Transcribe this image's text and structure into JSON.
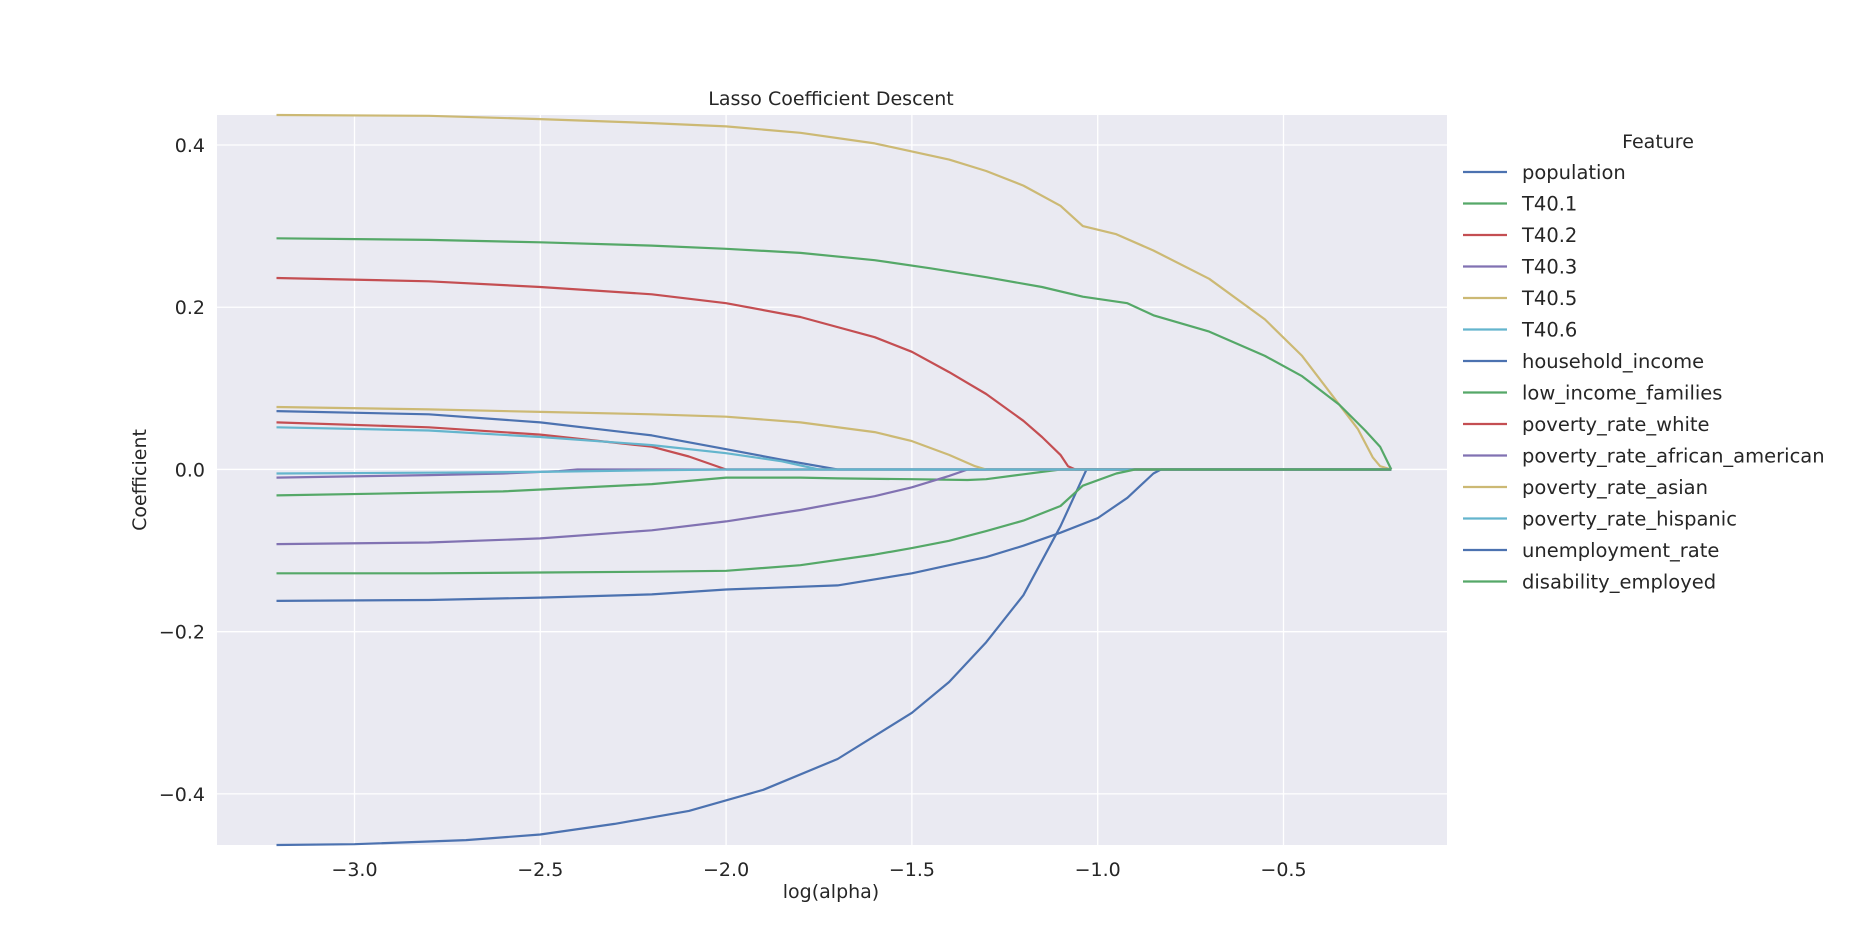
{
  "chart_data": {
    "type": "line",
    "title": "Lasso  Coefficient Descent",
    "xlabel": "log(alpha)",
    "ylabel": "Coefficient",
    "xlim": [
      -3.37,
      -0.06
    ],
    "ylim": [
      -0.463,
      0.437
    ],
    "xticks": [
      -3.0,
      -2.5,
      -2.0,
      -1.5,
      -1.0,
      -0.5
    ],
    "xtick_labels": [
      "−3.0",
      "−2.5",
      "−2.0",
      "−1.5",
      "−1.0",
      "−0.5"
    ],
    "yticks": [
      -0.4,
      -0.2,
      0.0,
      0.2,
      0.4
    ],
    "ytick_labels": [
      "−0.4",
      "−0.2",
      "0.0",
      "0.2",
      "0.4"
    ],
    "grid": true,
    "background": "#eaeaf2",
    "grid_color": "#ffffff",
    "legend": {
      "title": "Feature",
      "placement": "outside-right"
    },
    "series": [
      {
        "name": "population",
        "color": "#4c72b0",
        "points": [
          [
            -3.21,
            0.072
          ],
          [
            -2.8,
            0.068
          ],
          [
            -2.5,
            0.058
          ],
          [
            -2.2,
            0.042
          ],
          [
            -2.0,
            0.025
          ],
          [
            -1.85,
            0.012
          ],
          [
            -1.7,
            0.0
          ],
          [
            -0.21,
            0.0
          ]
        ]
      },
      {
        "name": "T40.1",
        "color": "#55a868",
        "points": [
          [
            -3.21,
            -0.032
          ],
          [
            -2.6,
            -0.027
          ],
          [
            -2.2,
            -0.018
          ],
          [
            -2.0,
            -0.01
          ],
          [
            -1.8,
            -0.01
          ],
          [
            -1.7,
            -0.011
          ],
          [
            -1.5,
            -0.012
          ],
          [
            -1.35,
            -0.013
          ],
          [
            -1.3,
            -0.012
          ],
          [
            -1.2,
            -0.006
          ],
          [
            -1.1,
            0.0
          ],
          [
            -0.21,
            0.0
          ]
        ]
      },
      {
        "name": "T40.2",
        "color": "#c44e52",
        "points": [
          [
            -3.21,
            0.058
          ],
          [
            -2.8,
            0.052
          ],
          [
            -2.5,
            0.043
          ],
          [
            -2.2,
            0.028
          ],
          [
            -2.1,
            0.016
          ],
          [
            -2.0,
            0.0
          ],
          [
            -0.21,
            0.0
          ]
        ]
      },
      {
        "name": "T40.3",
        "color": "#8172b2",
        "points": [
          [
            -3.21,
            -0.01
          ],
          [
            -2.8,
            -0.007
          ],
          [
            -2.6,
            -0.005
          ],
          [
            -2.45,
            -0.002
          ],
          [
            -2.4,
            0.0
          ],
          [
            -0.21,
            0.0
          ]
        ]
      },
      {
        "name": "T40.5",
        "color": "#ccb974",
        "points": [
          [
            -3.21,
            0.437
          ],
          [
            -2.8,
            0.436
          ],
          [
            -2.5,
            0.432
          ],
          [
            -2.2,
            0.427
          ],
          [
            -2.0,
            0.423
          ],
          [
            -1.8,
            0.415
          ],
          [
            -1.6,
            0.402
          ],
          [
            -1.4,
            0.382
          ],
          [
            -1.3,
            0.368
          ],
          [
            -1.2,
            0.35
          ],
          [
            -1.1,
            0.325
          ],
          [
            -1.04,
            0.3
          ],
          [
            -0.95,
            0.29
          ],
          [
            -0.85,
            0.27
          ],
          [
            -0.7,
            0.235
          ],
          [
            -0.55,
            0.185
          ],
          [
            -0.45,
            0.14
          ],
          [
            -0.35,
            0.08
          ],
          [
            -0.3,
            0.05
          ],
          [
            -0.26,
            0.015
          ],
          [
            -0.24,
            0.004
          ],
          [
            -0.21,
            0.0
          ]
        ]
      },
      {
        "name": "T40.6",
        "color": "#64b5cd",
        "points": [
          [
            -3.21,
            -0.005
          ],
          [
            -2.8,
            -0.004
          ],
          [
            -2.5,
            -0.003
          ],
          [
            -2.2,
            -0.001
          ],
          [
            -2.0,
            0.0
          ],
          [
            -0.21,
            0.0
          ]
        ]
      },
      {
        "name": "household_income",
        "color": "#4c72b0",
        "points": [
          [
            -3.21,
            -0.463
          ],
          [
            -3.0,
            -0.462
          ],
          [
            -2.7,
            -0.457
          ],
          [
            -2.5,
            -0.45
          ],
          [
            -2.3,
            -0.437
          ],
          [
            -2.1,
            -0.421
          ],
          [
            -1.9,
            -0.395
          ],
          [
            -1.7,
            -0.357
          ],
          [
            -1.5,
            -0.3
          ],
          [
            -1.4,
            -0.262
          ],
          [
            -1.3,
            -0.213
          ],
          [
            -1.2,
            -0.155
          ],
          [
            -1.1,
            -0.07
          ],
          [
            -1.05,
            -0.02
          ],
          [
            -1.03,
            0.0
          ],
          [
            -0.21,
            0.0
          ]
        ]
      },
      {
        "name": "low_income_families",
        "color": "#55a868",
        "points": [
          [
            -3.21,
            0.285
          ],
          [
            -2.8,
            0.283
          ],
          [
            -2.5,
            0.28
          ],
          [
            -2.2,
            0.276
          ],
          [
            -2.0,
            0.272
          ],
          [
            -1.8,
            0.267
          ],
          [
            -1.6,
            0.258
          ],
          [
            -1.45,
            0.248
          ],
          [
            -1.3,
            0.237
          ],
          [
            -1.15,
            0.225
          ],
          [
            -1.04,
            0.213
          ],
          [
            -0.92,
            0.205
          ],
          [
            -0.85,
            0.19
          ],
          [
            -0.7,
            0.17
          ],
          [
            -0.55,
            0.14
          ],
          [
            -0.45,
            0.115
          ],
          [
            -0.35,
            0.08
          ],
          [
            -0.28,
            0.048
          ],
          [
            -0.24,
            0.028
          ],
          [
            -0.21,
            0.0
          ]
        ]
      },
      {
        "name": "poverty_rate_white",
        "color": "#c44e52",
        "points": [
          [
            -3.21,
            0.236
          ],
          [
            -2.8,
            0.232
          ],
          [
            -2.5,
            0.225
          ],
          [
            -2.2,
            0.216
          ],
          [
            -2.0,
            0.205
          ],
          [
            -1.8,
            0.188
          ],
          [
            -1.6,
            0.163
          ],
          [
            -1.5,
            0.145
          ],
          [
            -1.4,
            0.12
          ],
          [
            -1.3,
            0.093
          ],
          [
            -1.2,
            0.06
          ],
          [
            -1.15,
            0.04
          ],
          [
            -1.1,
            0.018
          ],
          [
            -1.08,
            0.004
          ],
          [
            -1.06,
            0.0
          ],
          [
            -0.21,
            0.0
          ]
        ]
      },
      {
        "name": "poverty_rate_african_american",
        "color": "#8172b2",
        "points": [
          [
            -3.21,
            -0.092
          ],
          [
            -2.8,
            -0.09
          ],
          [
            -2.5,
            -0.085
          ],
          [
            -2.2,
            -0.075
          ],
          [
            -2.0,
            -0.064
          ],
          [
            -1.8,
            -0.05
          ],
          [
            -1.6,
            -0.033
          ],
          [
            -1.5,
            -0.022
          ],
          [
            -1.4,
            -0.008
          ],
          [
            -1.35,
            0.0
          ],
          [
            -0.21,
            0.0
          ]
        ]
      },
      {
        "name": "poverty_rate_asian",
        "color": "#ccb974",
        "points": [
          [
            -3.21,
            0.077
          ],
          [
            -2.8,
            0.074
          ],
          [
            -2.5,
            0.071
          ],
          [
            -2.2,
            0.068
          ],
          [
            -2.0,
            0.065
          ],
          [
            -1.8,
            0.058
          ],
          [
            -1.6,
            0.046
          ],
          [
            -1.5,
            0.035
          ],
          [
            -1.4,
            0.018
          ],
          [
            -1.33,
            0.004
          ],
          [
            -1.3,
            0.0
          ],
          [
            -0.21,
            0.0
          ]
        ]
      },
      {
        "name": "poverty_rate_hispanic",
        "color": "#64b5cd",
        "points": [
          [
            -3.21,
            0.052
          ],
          [
            -2.8,
            0.048
          ],
          [
            -2.5,
            0.04
          ],
          [
            -2.2,
            0.03
          ],
          [
            -2.0,
            0.02
          ],
          [
            -1.85,
            0.01
          ],
          [
            -1.75,
            0.0
          ],
          [
            -0.21,
            0.0
          ]
        ]
      },
      {
        "name": "unemployment_rate",
        "color": "#4c72b0",
        "points": [
          [
            -3.21,
            -0.162
          ],
          [
            -2.8,
            -0.161
          ],
          [
            -2.5,
            -0.158
          ],
          [
            -2.2,
            -0.154
          ],
          [
            -2.0,
            -0.148
          ],
          [
            -1.7,
            -0.143
          ],
          [
            -1.5,
            -0.128
          ],
          [
            -1.3,
            -0.108
          ],
          [
            -1.2,
            -0.094
          ],
          [
            -1.1,
            -0.078
          ],
          [
            -1.0,
            -0.06
          ],
          [
            -0.92,
            -0.035
          ],
          [
            -0.85,
            -0.005
          ],
          [
            -0.83,
            0.0
          ],
          [
            -0.21,
            0.0
          ]
        ]
      },
      {
        "name": "disability_employed",
        "color": "#55a868",
        "points": [
          [
            -3.21,
            -0.128
          ],
          [
            -2.8,
            -0.128
          ],
          [
            -2.5,
            -0.127
          ],
          [
            -2.2,
            -0.126
          ],
          [
            -2.0,
            -0.125
          ],
          [
            -1.8,
            -0.118
          ],
          [
            -1.6,
            -0.105
          ],
          [
            -1.5,
            -0.097
          ],
          [
            -1.4,
            -0.088
          ],
          [
            -1.3,
            -0.076
          ],
          [
            -1.2,
            -0.063
          ],
          [
            -1.1,
            -0.045
          ],
          [
            -1.04,
            -0.02
          ],
          [
            -0.95,
            -0.005
          ],
          [
            -0.9,
            0.0
          ],
          [
            -0.21,
            0.0
          ]
        ]
      }
    ]
  }
}
